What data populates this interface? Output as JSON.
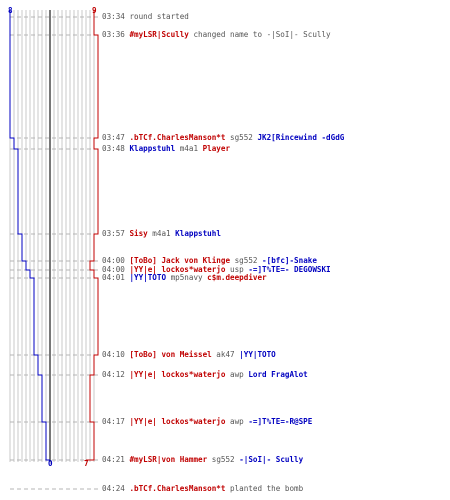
{
  "colors": {
    "red": "#c00000",
    "blue": "#0000c0",
    "grey": "#555555",
    "lines": "#c8c8c8"
  },
  "scores": {
    "blue_start": "8",
    "red_start": "9",
    "blue_end": "0",
    "red_end": "7"
  },
  "events": [
    {
      "time": "03:34",
      "parts": [
        {
          "text": "round started",
          "c": "grey"
        }
      ]
    },
    {
      "time": "03:36",
      "parts": [
        {
          "text": "#myLSR|Scully",
          "c": "red"
        },
        {
          "text": " changed name to -|SoI|- Scully",
          "c": "grey"
        }
      ]
    },
    {
      "time": "03:47",
      "parts": [
        {
          "text": ".bTCf.CharlesManson*t",
          "c": "red"
        },
        {
          "text": " sg552 ",
          "c": "grey"
        },
        {
          "text": "JK2[Rincewind -dGdG",
          "c": "blue"
        }
      ]
    },
    {
      "time": "03:48",
      "parts": [
        {
          "text": "Klappstuhl",
          "c": "blue"
        },
        {
          "text": " m4a1 ",
          "c": "grey"
        },
        {
          "text": "Player",
          "c": "red"
        }
      ]
    },
    {
      "time": "03:57",
      "parts": [
        {
          "text": "Sisy",
          "c": "red"
        },
        {
          "text": " m4a1 ",
          "c": "grey"
        },
        {
          "text": "Klappstuhl",
          "c": "blue"
        }
      ]
    },
    {
      "time": "04:00",
      "parts": [
        {
          "text": "[ToBo] Jack von Klinge",
          "c": "red"
        },
        {
          "text": " sg552 ",
          "c": "grey"
        },
        {
          "text": "-[bfc]-Snake",
          "c": "blue"
        }
      ]
    },
    {
      "time": "04:00",
      "parts": [
        {
          "text": "|YY|e| lockos*waterjo",
          "c": "red"
        },
        {
          "text": " usp ",
          "c": "grey"
        },
        {
          "text": "-=]T%TE=- DEGOWSKI",
          "c": "blue"
        }
      ]
    },
    {
      "time": "04:01",
      "parts": [
        {
          "text": "|YY|TOTO",
          "c": "blue"
        },
        {
          "text": " mp5navy ",
          "c": "grey"
        },
        {
          "text": "c$m.deepdiver",
          "c": "red"
        }
      ]
    },
    {
      "time": "04:10",
      "parts": [
        {
          "text": "[ToBo] von Meissel",
          "c": "red"
        },
        {
          "text": " ak47 ",
          "c": "grey"
        },
        {
          "text": "|YY|TOTO",
          "c": "blue"
        }
      ]
    },
    {
      "time": "04:12",
      "parts": [
        {
          "text": "|YY|e| lockos*waterjo",
          "c": "red"
        },
        {
          "text": " awp ",
          "c": "grey"
        },
        {
          "text": "Lord FragAlot",
          "c": "blue"
        }
      ]
    },
    {
      "time": "04:17",
      "parts": [
        {
          "text": "|YY|e| lockos*waterjo",
          "c": "red"
        },
        {
          "text": " awp ",
          "c": "grey"
        },
        {
          "text": "-=]T%TE=-R@SPE",
          "c": "blue"
        }
      ]
    },
    {
      "time": "04:21",
      "parts": [
        {
          "text": "#myLSR|von Hammer",
          "c": "red"
        },
        {
          "text": " sg552 ",
          "c": "grey"
        },
        {
          "text": "-|SoI|- Scully",
          "c": "blue"
        }
      ]
    },
    {
      "time": "04:24",
      "parts": [
        {
          "text": ".bTCf.CharlesManson*t",
          "c": "red"
        },
        {
          "text": " planted the bomb",
          "c": "grey"
        }
      ]
    }
  ]
}
